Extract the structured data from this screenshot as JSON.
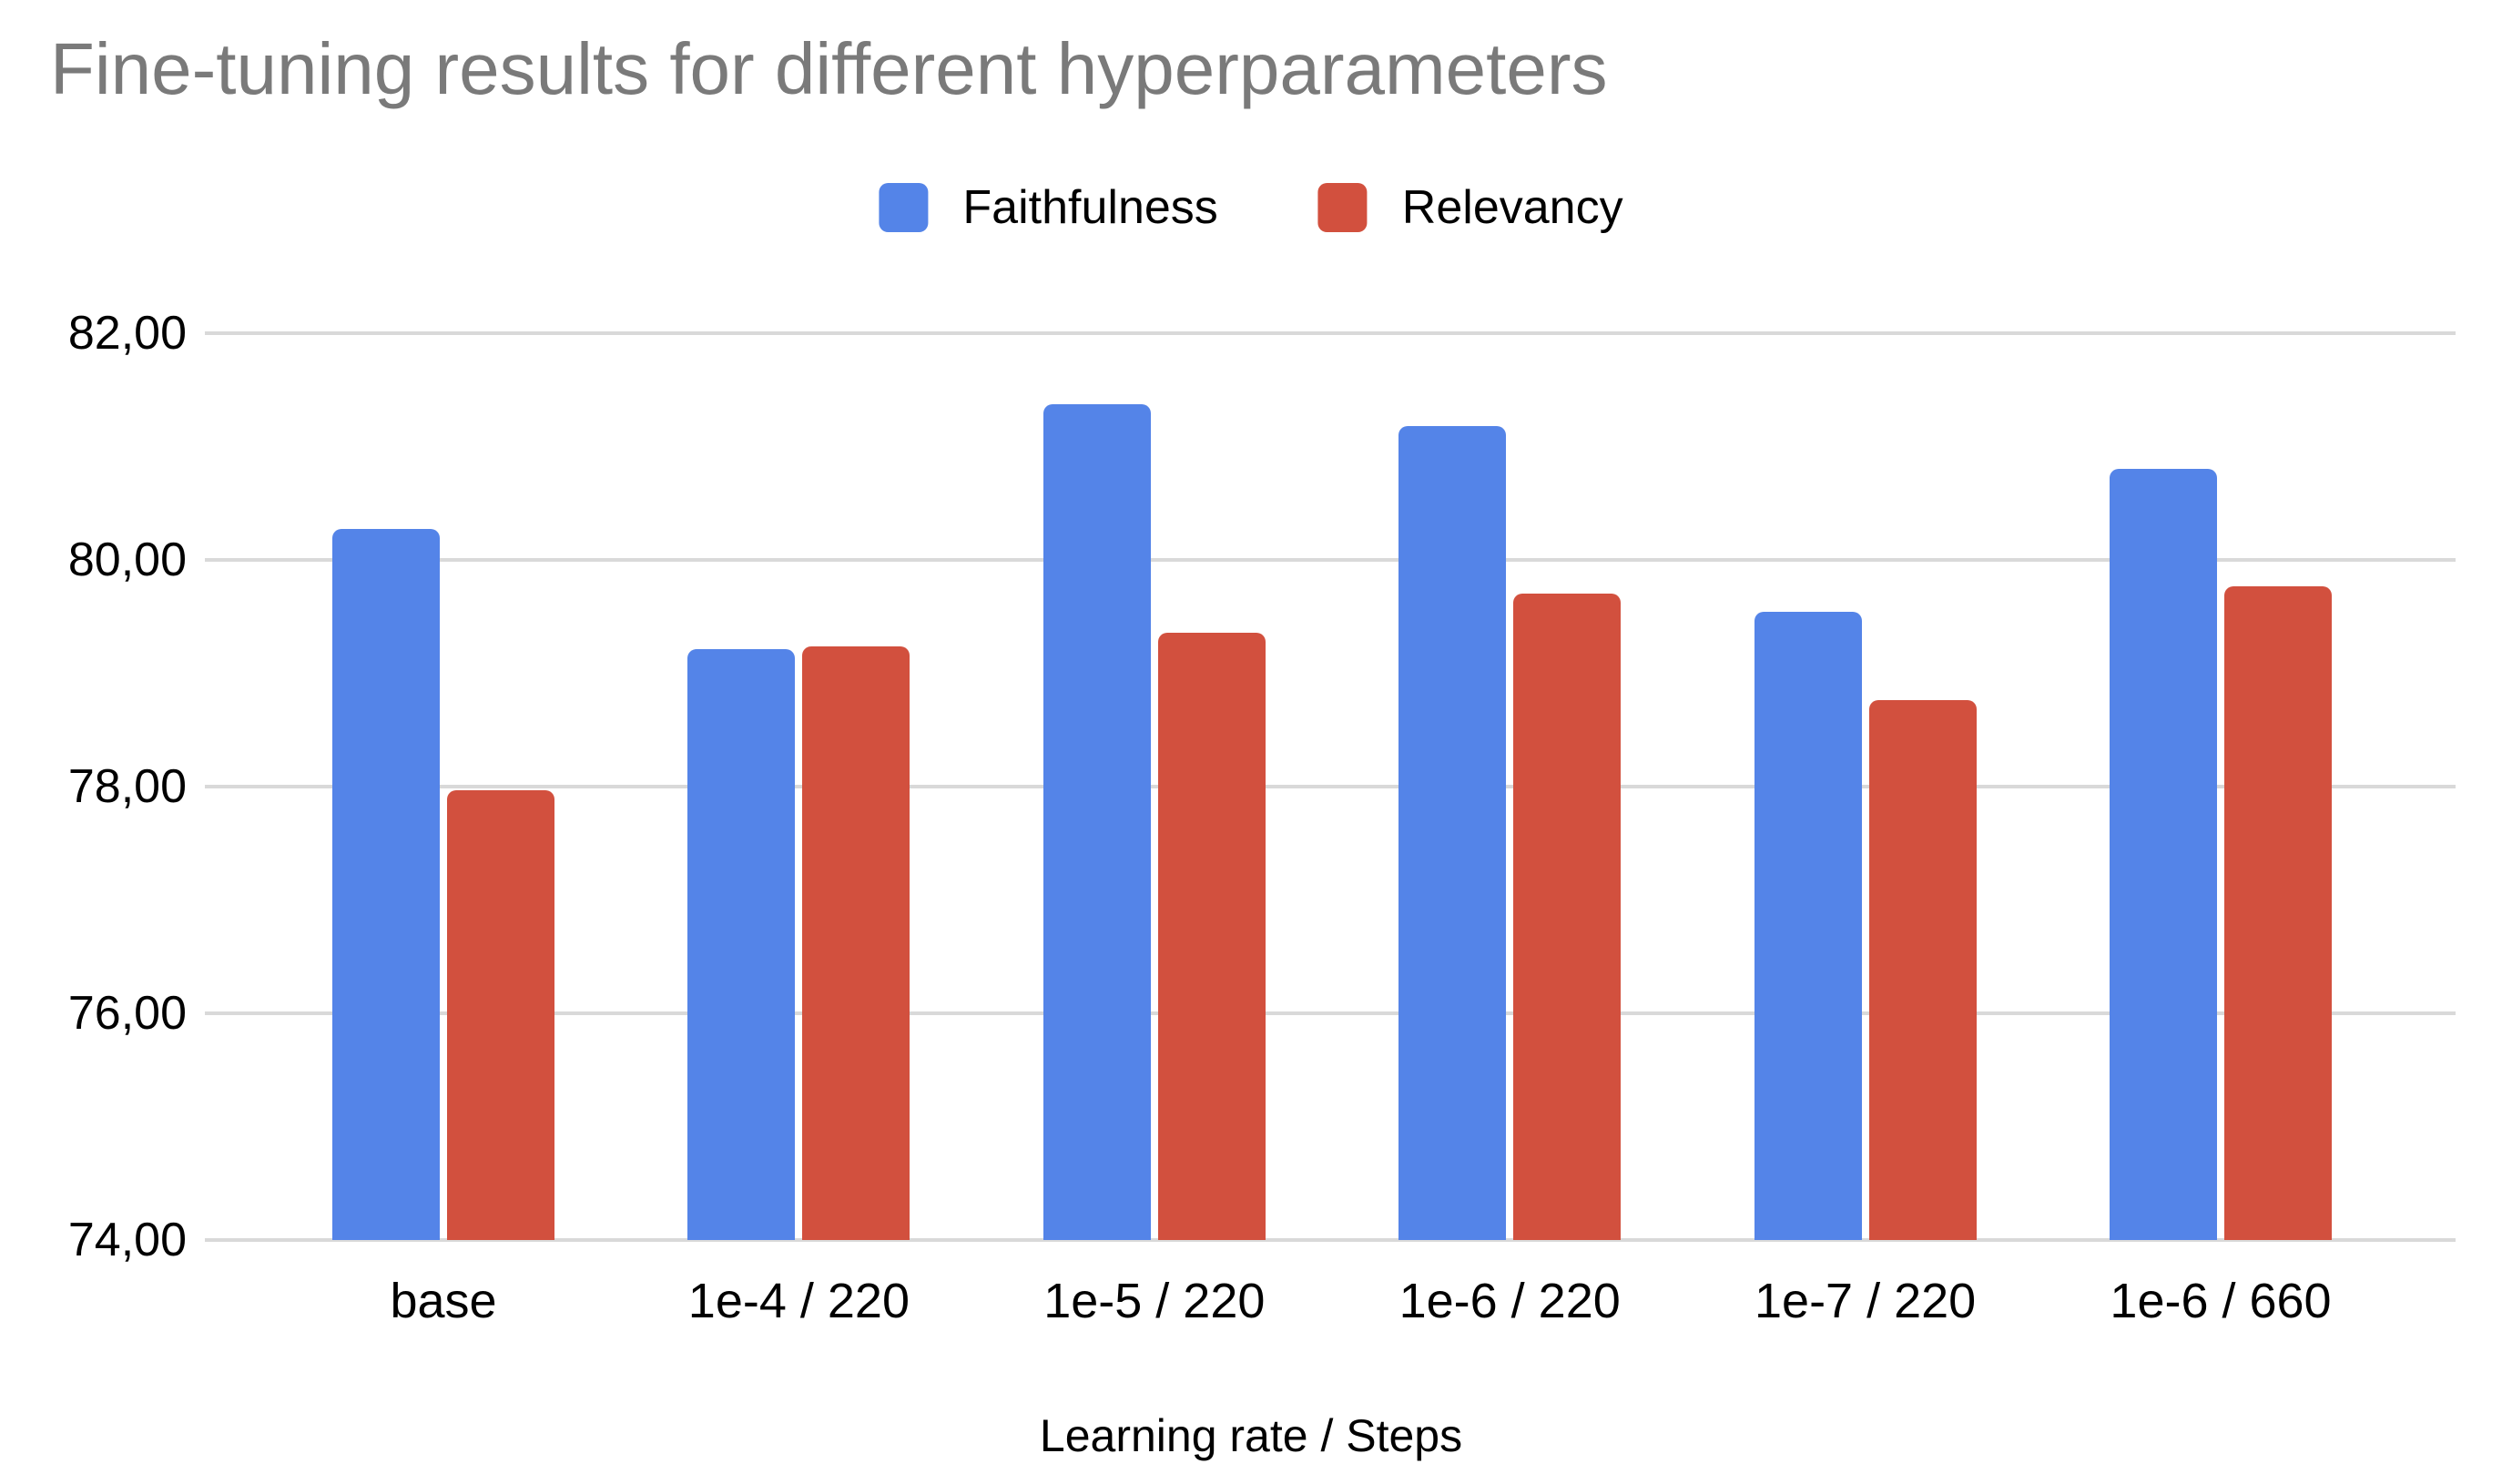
{
  "title": "Fine-tuning results for different hyperparameters",
  "legend": {
    "items": [
      {
        "label": "Faithfulness",
        "color": "#5484e8",
        "icon": "legend-swatch-square"
      },
      {
        "label": "Relevancy",
        "color": "#d2503e",
        "icon": "legend-swatch-square"
      }
    ]
  },
  "colors": {
    "faithfulness": "#5484e8",
    "relevancy": "#d2503e",
    "gridline": "#d9d9d9",
    "title_text": "#7a7a7a",
    "axis_text": "#000000",
    "background": "#ffffff"
  },
  "chart_data": {
    "type": "bar",
    "title": "Fine-tuning results for different hyperparameters",
    "categories": [
      "base",
      "1e-4 / 220",
      "1e-5 / 220",
      "1e-6 / 220",
      "1e-7 / 220",
      "1e-6 / 660"
    ],
    "series": [
      {
        "name": "Faithfulness",
        "color": "#5484e8",
        "values": [
          80.27,
          79.21,
          81.37,
          81.18,
          79.54,
          80.8
        ]
      },
      {
        "name": "Relevancy",
        "color": "#d2503e",
        "values": [
          77.97,
          79.24,
          79.36,
          79.7,
          78.76,
          79.77
        ]
      }
    ],
    "xlabel": "Learning rate / Steps",
    "ylabel": "",
    "ylim": [
      74,
      82
    ],
    "ytick_step": 2,
    "yticks": [
      {
        "value": 82,
        "label": "82,00"
      },
      {
        "value": 80,
        "label": "80,00"
      },
      {
        "value": 78,
        "label": "78,00"
      },
      {
        "value": 76,
        "label": "76,00"
      },
      {
        "value": 74,
        "label": "74,00"
      }
    ],
    "decimal_separator": ",",
    "grid": true,
    "legend_position": "top",
    "baseline_value": 74
  }
}
